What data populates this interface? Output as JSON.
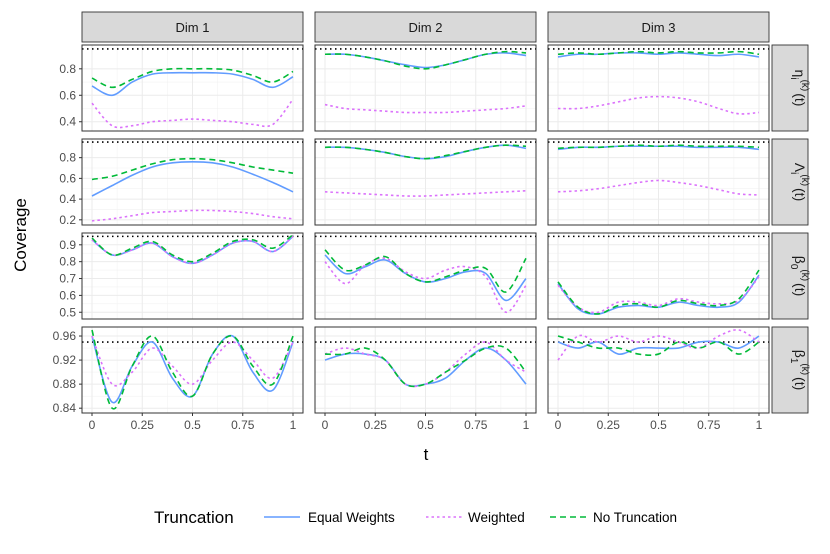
{
  "chart_data": {
    "type": "line",
    "xlabel": "t",
    "ylabel": "Coverage",
    "nominal_coverage": 0.95,
    "nominal_style": "dotted black reference line",
    "columns": [
      "Dim 1",
      "Dim 2",
      "Dim 3"
    ],
    "x_ticks": [
      0,
      0.25,
      0.5,
      0.75,
      1
    ],
    "x_tick_labels": [
      "0",
      "0.25",
      "0.5",
      "0.75",
      "1"
    ],
    "legend": {
      "title": "Truncation",
      "position": "bottom",
      "items": [
        {
          "label": "Equal Weights",
          "color": "#619CFF",
          "dash": "solid"
        },
        {
          "label": "Weighted",
          "color": "#DB72FB",
          "dash": "dotted"
        },
        {
          "label": "No Truncation",
          "color": "#00BA38",
          "dash": "dashed"
        }
      ]
    },
    "series_names": [
      "Equal Weights",
      "Weighted",
      "No Truncation"
    ],
    "x": [
      0,
      0.1,
      0.2,
      0.3,
      0.4,
      0.5,
      0.6,
      0.7,
      0.8,
      0.9,
      1
    ],
    "rows": [
      {
        "id": "eta",
        "strip_main": "η",
        "strip_sub": "i",
        "strip_sup": "(k)",
        "strip_tail": "(t)",
        "ylim": [
          0.33,
          0.98
        ],
        "y_ticks": [
          0.4,
          0.6,
          0.8
        ],
        "y_tick_labels": [
          "0.4",
          "0.6",
          "0.8"
        ],
        "panels": [
          {
            "series": [
              [
                0.67,
                0.6,
                0.7,
                0.76,
                0.77,
                0.77,
                0.77,
                0.76,
                0.72,
                0.66,
                0.74
              ],
              [
                0.54,
                0.37,
                0.37,
                0.4,
                0.41,
                0.42,
                0.41,
                0.4,
                0.38,
                0.38,
                0.57
              ],
              [
                0.73,
                0.66,
                0.72,
                0.78,
                0.8,
                0.8,
                0.8,
                0.79,
                0.75,
                0.7,
                0.78
              ]
            ]
          },
          {
            "series": [
              [
                0.91,
                0.91,
                0.89,
                0.86,
                0.83,
                0.81,
                0.83,
                0.87,
                0.91,
                0.92,
                0.9
              ],
              [
                0.53,
                0.5,
                0.49,
                0.48,
                0.47,
                0.47,
                0.47,
                0.48,
                0.49,
                0.5,
                0.52
              ],
              [
                0.91,
                0.91,
                0.89,
                0.86,
                0.82,
                0.8,
                0.83,
                0.87,
                0.91,
                0.93,
                0.92
              ]
            ]
          },
          {
            "series": [
              [
                0.89,
                0.91,
                0.91,
                0.92,
                0.92,
                0.91,
                0.92,
                0.91,
                0.9,
                0.91,
                0.89
              ],
              [
                0.5,
                0.5,
                0.52,
                0.55,
                0.58,
                0.59,
                0.58,
                0.55,
                0.5,
                0.46,
                0.47
              ],
              [
                0.91,
                0.92,
                0.91,
                0.92,
                0.93,
                0.92,
                0.93,
                0.92,
                0.92,
                0.93,
                0.91
              ]
            ]
          }
        ]
      },
      {
        "id": "lambda",
        "strip_main": "Λ",
        "strip_sub": "i",
        "strip_sup": "(k)",
        "strip_tail": "(t)",
        "ylim": [
          0.15,
          0.98
        ],
        "y_ticks": [
          0.2,
          0.4,
          0.6,
          0.8
        ],
        "y_tick_labels": [
          "0.2",
          "0.4",
          "0.6",
          "0.8"
        ],
        "panels": [
          {
            "series": [
              [
                0.43,
                0.53,
                0.63,
                0.71,
                0.75,
                0.76,
                0.75,
                0.71,
                0.64,
                0.56,
                0.47
              ],
              [
                0.19,
                0.21,
                0.24,
                0.27,
                0.28,
                0.29,
                0.29,
                0.28,
                0.26,
                0.23,
                0.21
              ],
              [
                0.59,
                0.62,
                0.68,
                0.74,
                0.78,
                0.79,
                0.78,
                0.75,
                0.71,
                0.68,
                0.65
              ]
            ]
          },
          {
            "series": [
              [
                0.9,
                0.9,
                0.88,
                0.85,
                0.81,
                0.79,
                0.81,
                0.86,
                0.9,
                0.92,
                0.89
              ],
              [
                0.47,
                0.46,
                0.45,
                0.44,
                0.43,
                0.43,
                0.44,
                0.45,
                0.46,
                0.47,
                0.48
              ],
              [
                0.9,
                0.9,
                0.88,
                0.85,
                0.81,
                0.79,
                0.82,
                0.86,
                0.9,
                0.92,
                0.91
              ]
            ]
          },
          {
            "series": [
              [
                0.88,
                0.9,
                0.9,
                0.91,
                0.91,
                0.91,
                0.91,
                0.9,
                0.9,
                0.9,
                0.88
              ],
              [
                0.47,
                0.48,
                0.5,
                0.53,
                0.56,
                0.58,
                0.56,
                0.53,
                0.49,
                0.45,
                0.44
              ],
              [
                0.89,
                0.9,
                0.9,
                0.91,
                0.92,
                0.91,
                0.92,
                0.91,
                0.91,
                0.91,
                0.9
              ]
            ]
          }
        ]
      },
      {
        "id": "beta0",
        "strip_main": "β",
        "strip_sub": "0",
        "strip_sup": "(k)",
        "strip_tail": "(t)",
        "ylim": [
          0.46,
          0.97
        ],
        "y_ticks": [
          0.5,
          0.6,
          0.7,
          0.8,
          0.9
        ],
        "y_tick_labels": [
          "0.5",
          "0.6",
          "0.7",
          "0.8",
          "0.9"
        ],
        "panels": [
          {
            "series": [
              [
                0.93,
                0.84,
                0.87,
                0.91,
                0.83,
                0.79,
                0.84,
                0.91,
                0.92,
                0.86,
                0.95
              ],
              [
                0.93,
                0.84,
                0.87,
                0.91,
                0.83,
                0.79,
                0.84,
                0.91,
                0.92,
                0.86,
                0.95
              ],
              [
                0.94,
                0.84,
                0.88,
                0.92,
                0.84,
                0.8,
                0.85,
                0.92,
                0.93,
                0.88,
                0.96
              ]
            ]
          },
          {
            "series": [
              [
                0.84,
                0.73,
                0.77,
                0.81,
                0.73,
                0.68,
                0.7,
                0.74,
                0.73,
                0.57,
                0.7
              ],
              [
                0.8,
                0.67,
                0.78,
                0.82,
                0.74,
                0.7,
                0.75,
                0.77,
                0.71,
                0.5,
                0.66
              ],
              [
                0.87,
                0.75,
                0.78,
                0.83,
                0.73,
                0.68,
                0.71,
                0.75,
                0.76,
                0.62,
                0.82
              ]
            ]
          },
          {
            "series": [
              [
                0.67,
                0.52,
                0.49,
                0.53,
                0.54,
                0.53,
                0.56,
                0.54,
                0.53,
                0.56,
                0.72
              ],
              [
                0.66,
                0.53,
                0.5,
                0.56,
                0.56,
                0.54,
                0.58,
                0.56,
                0.55,
                0.57,
                0.71
              ],
              [
                0.68,
                0.53,
                0.49,
                0.54,
                0.55,
                0.53,
                0.57,
                0.55,
                0.54,
                0.58,
                0.75
              ]
            ]
          }
        ]
      },
      {
        "id": "beta1",
        "strip_main": "β",
        "strip_sub": "1",
        "strip_sup": "(k)",
        "strip_tail": "(t)",
        "ylim": [
          0.832,
          0.975
        ],
        "y_ticks": [
          0.84,
          0.88,
          0.92,
          0.96
        ],
        "y_tick_labels": [
          "0.84",
          "0.88",
          "0.92",
          "0.96"
        ],
        "panels": [
          {
            "series": [
              [
                0.96,
                0.85,
                0.91,
                0.95,
                0.89,
                0.86,
                0.93,
                0.96,
                0.9,
                0.87,
                0.95
              ],
              [
                0.96,
                0.88,
                0.9,
                0.94,
                0.91,
                0.88,
                0.92,
                0.95,
                0.92,
                0.89,
                0.95
              ],
              [
                0.97,
                0.84,
                0.91,
                0.96,
                0.9,
                0.86,
                0.93,
                0.96,
                0.91,
                0.88,
                0.96
              ]
            ]
          },
          {
            "series": [
              [
                0.92,
                0.93,
                0.93,
                0.92,
                0.88,
                0.88,
                0.89,
                0.92,
                0.94,
                0.92,
                0.88
              ],
              [
                0.93,
                0.94,
                0.93,
                0.92,
                0.88,
                0.88,
                0.9,
                0.93,
                0.95,
                0.92,
                0.9
              ],
              [
                0.93,
                0.93,
                0.94,
                0.92,
                0.88,
                0.88,
                0.9,
                0.92,
                0.94,
                0.94,
                0.9
              ]
            ]
          },
          {
            "series": [
              [
                0.95,
                0.94,
                0.95,
                0.93,
                0.94,
                0.94,
                0.94,
                0.95,
                0.95,
                0.94,
                0.96
              ],
              [
                0.92,
                0.96,
                0.95,
                0.96,
                0.95,
                0.96,
                0.95,
                0.94,
                0.96,
                0.97,
                0.95
              ],
              [
                0.96,
                0.95,
                0.94,
                0.94,
                0.93,
                0.93,
                0.95,
                0.94,
                0.95,
                0.93,
                0.95
              ]
            ]
          }
        ]
      }
    ]
  }
}
